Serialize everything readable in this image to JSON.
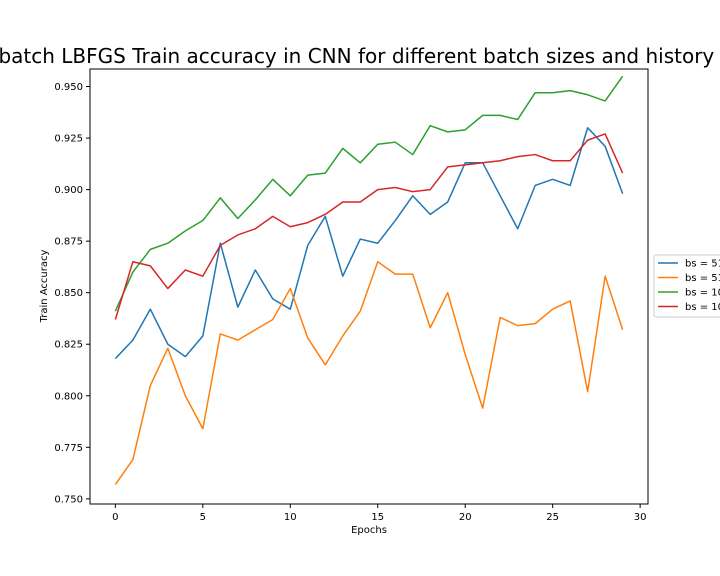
{
  "chart_data": {
    "type": "line",
    "title": "Mini-batch LBFGS Train accuracy in CNN for different batch sizes and history sizes",
    "xlabel": "Epochs",
    "ylabel": "Train Accuracy",
    "xlim": [
      -1.45,
      30.45
    ],
    "ylim": [
      0.7475,
      0.9585
    ],
    "xticks": [
      0,
      5,
      10,
      15,
      20,
      25,
      30
    ],
    "xtick_labels": [
      "0",
      "5",
      "10",
      "15",
      "20",
      "25",
      "30"
    ],
    "yticks": [
      0.75,
      0.775,
      0.8,
      0.825,
      0.85,
      0.875,
      0.9,
      0.925,
      0.95
    ],
    "ytick_labels": [
      "0.750",
      "0.775",
      "0.800",
      "0.825",
      "0.850",
      "0.875",
      "0.900",
      "0.925",
      "0.950"
    ],
    "grid": false,
    "legend_position": "right-outside",
    "x": [
      0,
      1,
      2,
      3,
      4,
      5,
      6,
      7,
      8,
      9,
      10,
      11,
      12,
      13,
      14,
      15,
      16,
      17,
      18,
      19,
      20,
      21,
      22,
      23,
      24,
      25,
      26,
      27,
      28,
      29
    ],
    "series": [
      {
        "name": "bs = 51",
        "color": "#1f77b4",
        "values": [
          0.818,
          0.827,
          0.842,
          0.825,
          0.819,
          0.829,
          0.874,
          0.843,
          0.861,
          0.847,
          0.842,
          0.873,
          0.887,
          0.858,
          0.876,
          0.874,
          0.885,
          0.897,
          0.888,
          0.894,
          0.913,
          0.913,
          0.897,
          0.881,
          0.902,
          0.905,
          0.902,
          0.93,
          0.921,
          0.898
        ]
      },
      {
        "name": "bs = 51",
        "color": "#ff7f0e",
        "values": [
          0.757,
          0.769,
          0.805,
          0.823,
          0.8,
          0.784,
          0.83,
          0.827,
          0.832,
          0.837,
          0.852,
          0.828,
          0.815,
          0.829,
          0.841,
          0.865,
          0.859,
          0.859,
          0.833,
          0.85,
          0.82,
          0.794,
          0.838,
          0.834,
          0.835,
          0.842,
          0.846,
          0.802,
          0.858,
          0.832
        ]
      },
      {
        "name": "bs = 10",
        "color": "#2ca02c",
        "values": [
          0.841,
          0.86,
          0.871,
          0.874,
          0.88,
          0.885,
          0.896,
          0.886,
          0.895,
          0.905,
          0.897,
          0.907,
          0.908,
          0.92,
          0.913,
          0.922,
          0.923,
          0.917,
          0.931,
          0.928,
          0.929,
          0.936,
          0.936,
          0.934,
          0.947,
          0.947,
          0.948,
          0.946,
          0.943,
          0.955
        ]
      },
      {
        "name": "bs = 10",
        "color": "#d62728",
        "values": [
          0.837,
          0.865,
          0.863,
          0.852,
          0.861,
          0.858,
          0.873,
          0.878,
          0.881,
          0.887,
          0.882,
          0.884,
          0.888,
          0.894,
          0.894,
          0.9,
          0.901,
          0.899,
          0.9,
          0.911,
          0.912,
          0.913,
          0.914,
          0.916,
          0.917,
          0.914,
          0.914,
          0.924,
          0.927,
          0.908
        ]
      }
    ]
  }
}
